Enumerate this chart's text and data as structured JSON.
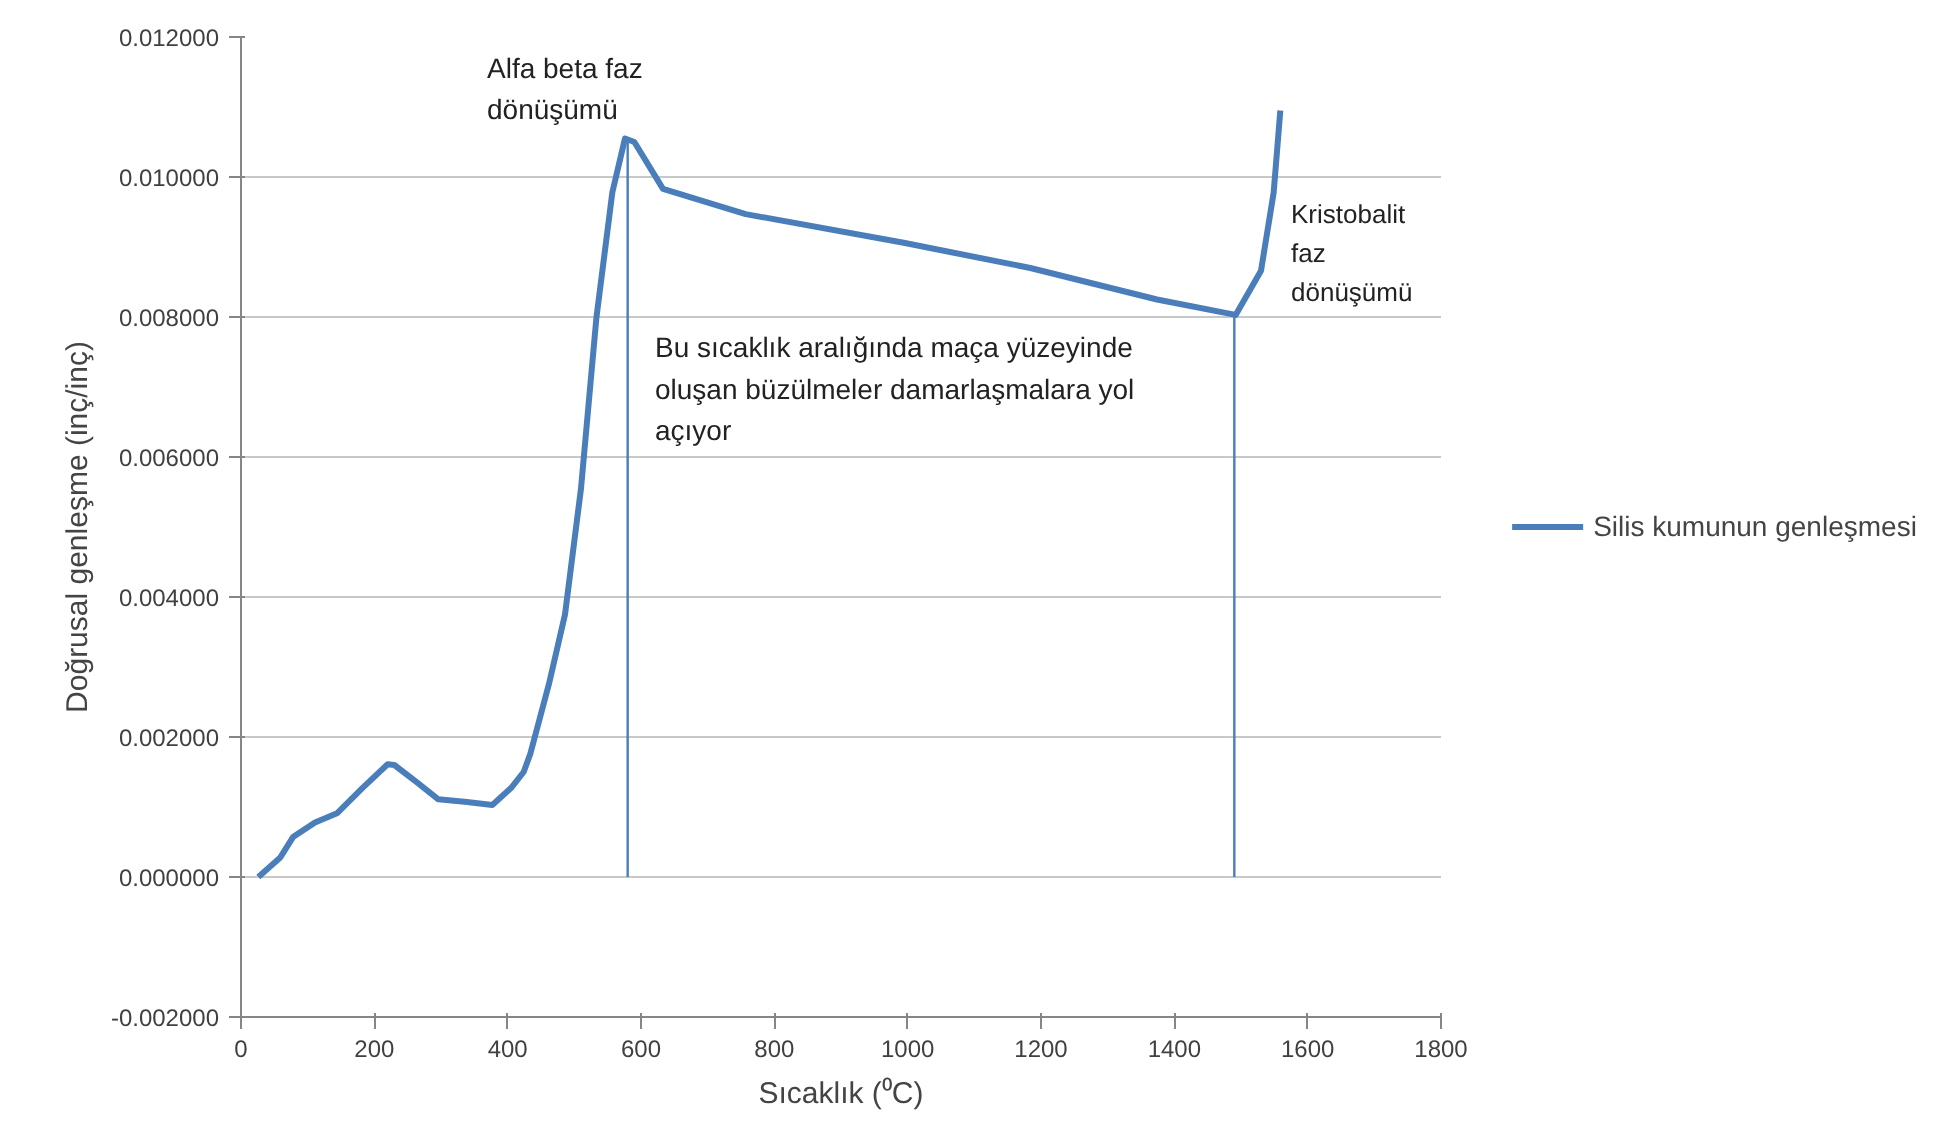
{
  "chart_data": {
    "type": "line",
    "xlabel": "Sıcaklık (⁰C)",
    "ylabel": "Doğrusal genleşme (inç/inç)",
    "series": [
      {
        "name": "Silis kumunun genleşmesi",
        "color": "#4a7ebb",
        "x": [
          26,
          59,
          78,
          111,
          144,
          182,
          220,
          230,
          263,
          296,
          339,
          377,
          405,
          424,
          434,
          462,
          486,
          510,
          533,
          557,
          576,
          590,
          633,
          757,
          994,
          1184,
          1374,
          1492,
          1530,
          1549,
          1559
        ],
        "values": [
          0.0,
          0.00028,
          0.00057,
          0.00078,
          0.00091,
          0.00127,
          0.00161,
          0.0016,
          0.00136,
          0.00111,
          0.00107,
          0.00103,
          0.00127,
          0.0015,
          0.00176,
          0.00276,
          0.00375,
          0.00555,
          0.00798,
          0.00978,
          0.01055,
          0.0105,
          0.00983,
          0.00947,
          0.00906,
          0.0087,
          0.00825,
          0.00803,
          0.00866,
          0.00978,
          0.01095
        ]
      }
    ],
    "xlim": [
      0,
      1800
    ],
    "xticks": [
      0,
      200,
      400,
      600,
      800,
      1000,
      1200,
      1400,
      1600,
      1800
    ],
    "ylim": [
      -0.002,
      0.012
    ],
    "yticks": [
      {
        "value": -0.002,
        "label": "-0.002000"
      },
      {
        "value": 0,
        "label": "0.000000"
      },
      {
        "value": 0.002,
        "label": "0.002000"
      },
      {
        "value": 0.004,
        "label": "0.004000"
      },
      {
        "value": 0.006,
        "label": "0.006000"
      },
      {
        "value": 0.008,
        "label": "0.008000"
      },
      {
        "value": 0.01,
        "label": "0.010000"
      },
      {
        "value": 0.012,
        "label": "0.012000"
      }
    ],
    "ref_lines": [
      {
        "axis": "x",
        "value": 580,
        "color": "#4a7ebb"
      },
      {
        "axis": "x",
        "value": 1490,
        "color": "#4a7ebb"
      }
    ],
    "annotations": [
      "Alfa beta faz\ndönüşümü",
      "Bu sıcaklık aralığında maça yüzeyinde\noluşan büzülmeler damarlaşmalara yol\naçıyor",
      "Kristobalit faz\ndönüşümü"
    ],
    "grid": "y",
    "legend": "right",
    "line_style": "solid"
  }
}
